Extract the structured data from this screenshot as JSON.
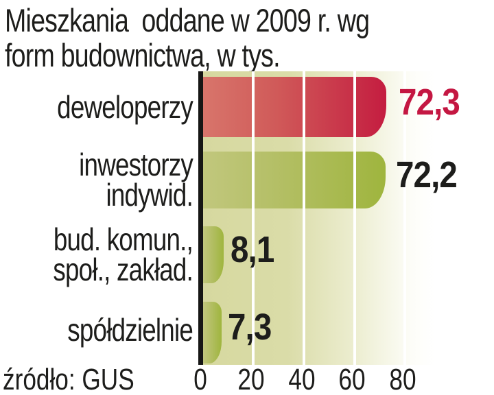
{
  "title": {
    "lines": [
      "Mieszkania  oddane w 2009 r. wg",
      "form budownictwa, w tys."
    ]
  },
  "source": "źródło: GUS",
  "categories": [
    {
      "lines": [
        "deweloperzy",
        ""
      ],
      "value_label": "72,3"
    },
    {
      "lines": [
        "inwestorzy",
        "indywid."
      ],
      "value_label": "72,2"
    },
    {
      "lines": [
        "bud. komun.,",
        "społ., zakład."
      ],
      "value_label": "8,1"
    },
    {
      "lines": [
        "spółdzielnie",
        ""
      ],
      "value_label": "7,3"
    }
  ],
  "axis": {
    "ticks": [
      "0",
      "20",
      "40",
      "60",
      "80"
    ]
  },
  "colors": {
    "red_bar_start": "#d8756b",
    "red_bar_end": "#c41d40",
    "green_bar_start": "#c1c77d",
    "green_bar_end": "#9fb53e",
    "value_red": "#c41742",
    "value_black": "#1d1d1b",
    "plot_background": "#d6d89f",
    "gridline": "#ffffff",
    "axis_line": "#161615",
    "text": "#1d1d1b"
  },
  "chart_data": {
    "type": "bar",
    "orientation": "horizontal",
    "title": "Mieszkania oddane w 2009 r. wg form budownictwa, w tys.",
    "categories": [
      "deweloperzy",
      "inwestorzy indywid.",
      "bud. komun., społ., zakład.",
      "spółdzielnie"
    ],
    "values": [
      72.3,
      72.2,
      8.1,
      7.3
    ],
    "value_labels": [
      "72,3",
      "72,2",
      "8,1",
      "7,3"
    ],
    "bar_colors": [
      "red",
      "green",
      "green",
      "green"
    ],
    "xlabel": "",
    "ylabel": "",
    "xlim": [
      0,
      80
    ],
    "x_ticks": [
      0,
      20,
      40,
      60,
      80
    ],
    "grid": true,
    "legend": false,
    "source": "źródło: GUS"
  }
}
